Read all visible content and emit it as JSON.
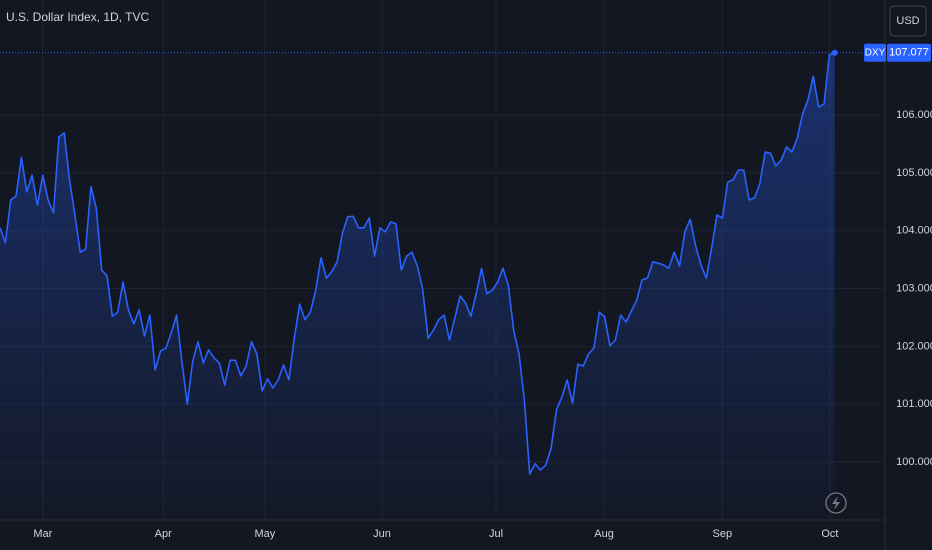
{
  "chart_data": {
    "type": "area",
    "title": "U.S. Dollar Index, 1D, TVC",
    "currency": "USD",
    "symbol": "DXY",
    "color": "#2962ff",
    "grid": true,
    "values": [
      104.05,
      103.79,
      104.53,
      104.6,
      105.27,
      104.67,
      104.96,
      104.44,
      104.96,
      104.53,
      104.31,
      105.62,
      105.69,
      104.88,
      104.27,
      103.63,
      103.68,
      104.76,
      104.39,
      103.32,
      103.22,
      102.52,
      102.59,
      103.11,
      102.63,
      102.39,
      102.63,
      102.18,
      102.54,
      101.59,
      101.92,
      101.97,
      102.23,
      102.54,
      101.73,
      101.0,
      101.73,
      102.08,
      101.71,
      101.94,
      101.8,
      101.71,
      101.33,
      101.76,
      101.76,
      101.49,
      101.66,
      102.08,
      101.87,
      101.23,
      101.44,
      101.28,
      101.42,
      101.68,
      101.42,
      102.14,
      102.73,
      102.46,
      102.59,
      102.97,
      103.53,
      103.18,
      103.29,
      103.46,
      103.96,
      104.24,
      104.25,
      104.05,
      104.05,
      104.22,
      103.56,
      104.05,
      103.98,
      104.15,
      104.12,
      103.32,
      103.56,
      103.63,
      103.39,
      102.99,
      102.14,
      102.28,
      102.46,
      102.54,
      102.11,
      102.49,
      102.87,
      102.75,
      102.52,
      102.91,
      103.35,
      102.91,
      102.97,
      103.11,
      103.35,
      103.06,
      102.28,
      101.87,
      101.07,
      99.79,
      99.97,
      99.86,
      99.95,
      100.24,
      100.9,
      101.12,
      101.42,
      101.02,
      101.69,
      101.66,
      101.87,
      101.97,
      102.59,
      102.51,
      102.01,
      102.11,
      102.54,
      102.42,
      102.61,
      102.8,
      103.15,
      103.18,
      103.46,
      103.44,
      103.41,
      103.35,
      103.63,
      103.39,
      103.98,
      104.2,
      103.74,
      103.41,
      103.18,
      103.7,
      104.27,
      104.22,
      104.84,
      104.88,
      105.05,
      105.05,
      104.53,
      104.57,
      104.81,
      105.36,
      105.34,
      105.12,
      105.22,
      105.45,
      105.36,
      105.6,
      106.02,
      106.26,
      106.67,
      106.14,
      106.19,
      107.04,
      107.077
    ],
    "xlim": [
      0,
      165.4
    ],
    "xticks": [
      {
        "value": 8.0,
        "label": "Mar"
      },
      {
        "value": 30.5,
        "label": "Apr"
      },
      {
        "value": 49.5,
        "label": "May"
      },
      {
        "value": 71.4,
        "label": "Jun"
      },
      {
        "value": 92.7,
        "label": "Jul"
      },
      {
        "value": 112.9,
        "label": "Aug"
      },
      {
        "value": 135.0,
        "label": "Sep"
      },
      {
        "value": 155.1,
        "label": "Oct"
      }
    ],
    "ylim": [
      98.997,
      107.99
    ],
    "yticks": [
      {
        "value": 100,
        "label": "100.000"
      },
      {
        "value": 101,
        "label": "101.000"
      },
      {
        "value": 102,
        "label": "102.000"
      },
      {
        "value": 103,
        "label": "103.000"
      },
      {
        "value": 104,
        "label": "104.000"
      },
      {
        "value": 105,
        "label": "105.000"
      },
      {
        "value": 106,
        "label": "106.000"
      }
    ]
  }
}
